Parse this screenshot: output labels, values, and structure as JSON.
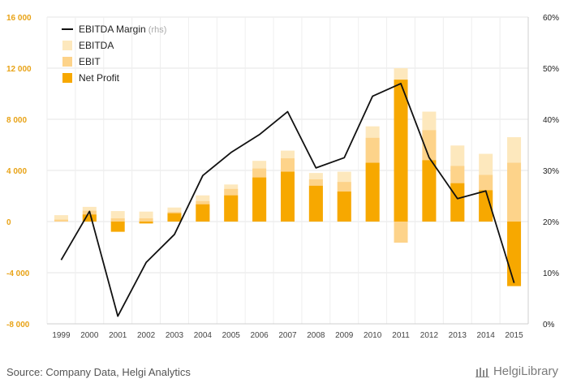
{
  "chart_data": {
    "type": "bar",
    "categories": [
      "1999",
      "2000",
      "2001",
      "2002",
      "2003",
      "2004",
      "2005",
      "2006",
      "2007",
      "2008",
      "2009",
      "2010",
      "2011",
      "2012",
      "2013",
      "2014",
      "2015"
    ],
    "series": [
      {
        "name": "EBITDA",
        "color": "#fde8bd",
        "values": [
          500,
          1150,
          820,
          780,
          1100,
          2050,
          2900,
          4750,
          5550,
          3800,
          3900,
          7450,
          12000,
          8600,
          5950,
          5300,
          6600
        ]
      },
      {
        "name": "EBIT",
        "color": "#fdd38a",
        "values": [
          150,
          850,
          250,
          250,
          750,
          1600,
          2550,
          4150,
          4950,
          3300,
          3100,
          6550,
          -1650,
          7150,
          4350,
          3650,
          4600
        ]
      },
      {
        "name": "Net Profit",
        "color": "#f7a800",
        "values": [
          0,
          550,
          -800,
          -150,
          650,
          1350,
          2050,
          3450,
          3900,
          2800,
          2350,
          4600,
          11100,
          4800,
          3000,
          2450,
          -5050
        ]
      },
      {
        "name": "EBITDA Margin",
        "axis": "rhs",
        "unit": "%",
        "color": "#111111",
        "values": [
          12.5,
          22.0,
          1.5,
          12.0,
          17.5,
          29.0,
          33.5,
          37.0,
          41.5,
          30.5,
          32.5,
          44.5,
          47.0,
          32.5,
          24.5,
          26.0,
          8.0
        ]
      }
    ],
    "legend": {
      "position": "top-left",
      "entries": [
        {
          "label": "EBITDA Margin",
          "suffix": "(rhs)"
        },
        {
          "label": "EBITDA"
        },
        {
          "label": "EBIT"
        },
        {
          "label": "Net Profit"
        }
      ]
    },
    "left_axis": {
      "ylim": [
        -8000,
        16000
      ],
      "ticks": [
        -8000,
        -4000,
        0,
        4000,
        8000,
        12000,
        16000
      ],
      "tick_labels": [
        "-8 000",
        "-4 000",
        "0",
        "4 000",
        "8 000",
        "12 000",
        "16 000"
      ]
    },
    "right_axis": {
      "ylim": [
        0,
        60
      ],
      "ticks": [
        0,
        10,
        20,
        30,
        40,
        50,
        60
      ],
      "tick_labels": [
        "0%",
        "10%",
        "20%",
        "30%",
        "40%",
        "50%",
        "60%"
      ]
    },
    "grid": true,
    "title": "",
    "xlabel": "",
    "ylabel": ""
  },
  "footer": {
    "source": "Source: Company Data, Helgi Analytics",
    "brand": "HelgiLibrary"
  }
}
